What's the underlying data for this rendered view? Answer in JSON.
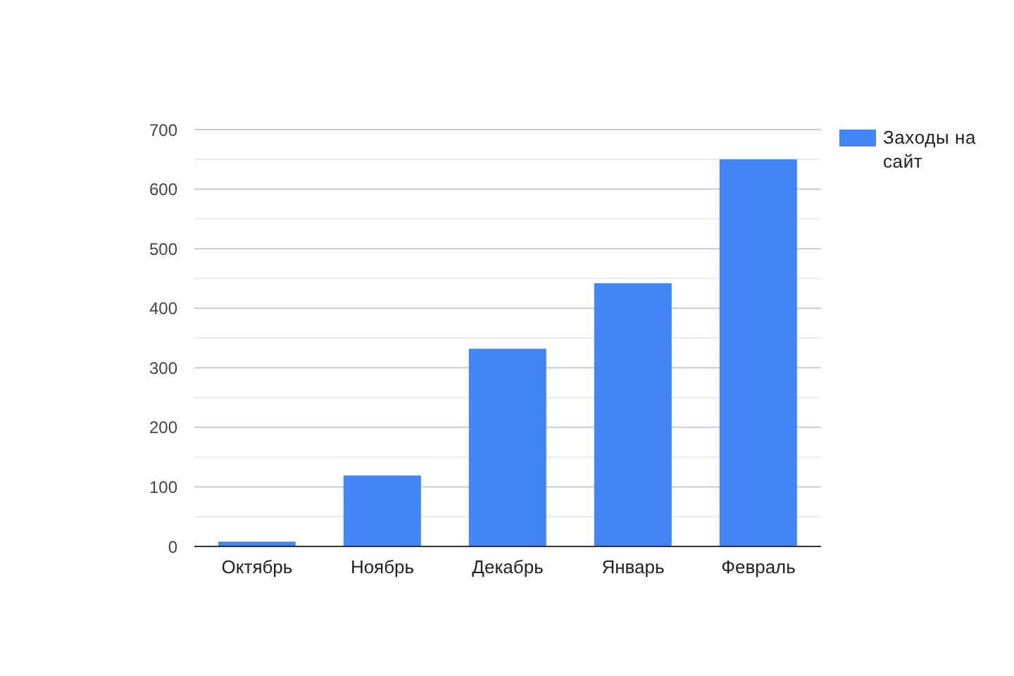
{
  "chart_data": {
    "type": "bar",
    "categories": [
      "Октябрь",
      "Ноябрь",
      "Декабрь",
      "Январь",
      "Февраль"
    ],
    "series": [
      {
        "name": "Заходы на сайт",
        "color": "#4285f4",
        "values": [
          8,
          119,
          332,
          442,
          650
        ]
      }
    ],
    "ylim": [
      0,
      700
    ],
    "yticks": [
      0,
      {
        "value": 50,
        "label": null
      },
      100,
      {
        "value": 150,
        "label": null
      },
      200,
      {
        "value": 250,
        "label": null
      },
      300,
      {
        "value": 350,
        "label": null
      },
      400,
      {
        "value": 450,
        "label": null
      },
      500,
      {
        "value": 550,
        "label": null
      },
      600,
      {
        "value": 650,
        "label": null
      },
      700
    ],
    "grid": "y",
    "legend": "top right"
  }
}
